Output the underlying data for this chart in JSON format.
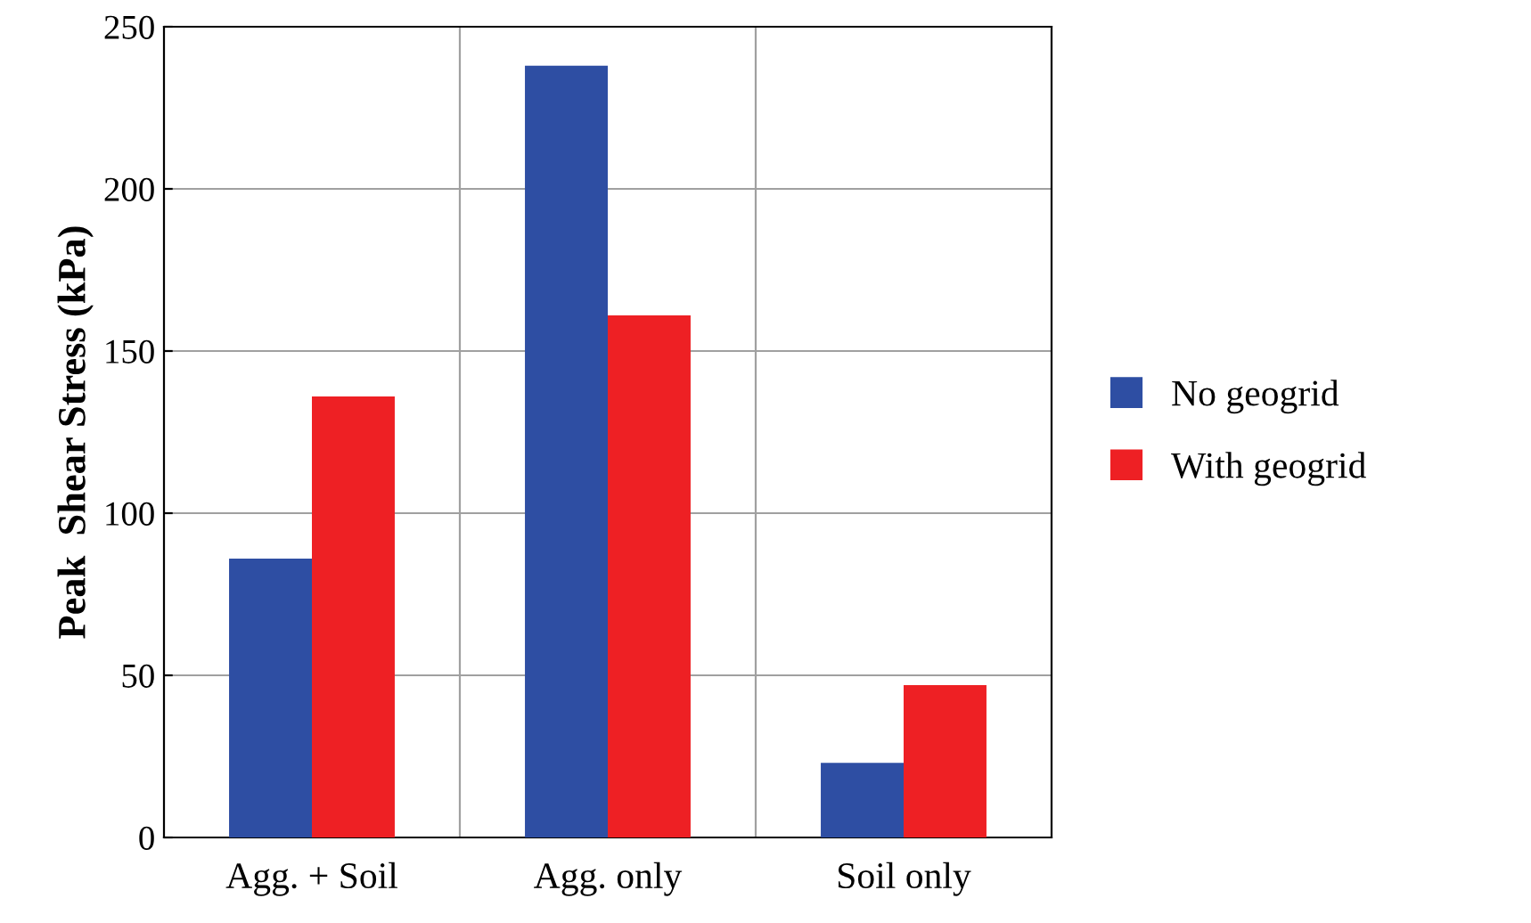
{
  "chart_data": {
    "type": "bar",
    "ylabel": "Peak  Shear Stress (kPa)",
    "categories": [
      "Agg. + Soil",
      "Agg. only",
      "Soil only"
    ],
    "series": [
      {
        "name": "No geogrid",
        "color": "#2e4ea3",
        "values": [
          86,
          238,
          23
        ]
      },
      {
        "name": "With geogrid",
        "color": "#ee2024",
        "values": [
          136,
          161,
          47
        ]
      }
    ],
    "ylim": [
      0,
      250
    ],
    "yticks": [
      0,
      50,
      100,
      150,
      200,
      250
    ],
    "grid": true,
    "legend": "right"
  }
}
